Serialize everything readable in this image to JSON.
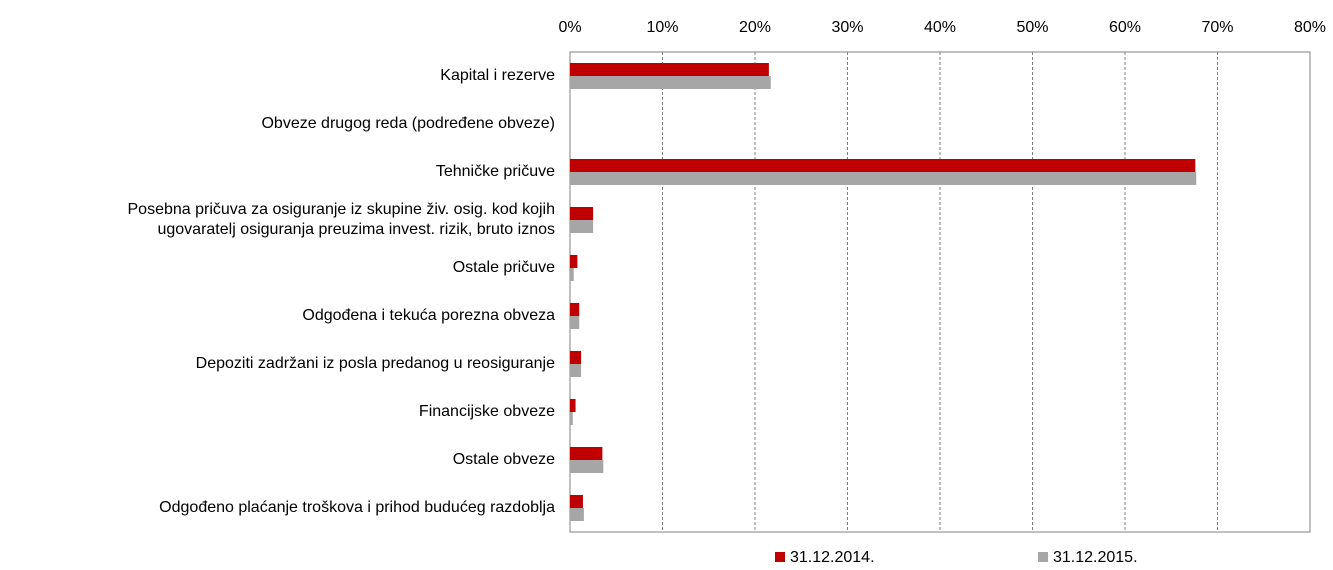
{
  "chart_data": {
    "type": "hbar",
    "categories": [
      "Kapital i rezerve",
      "Obveze drugog reda (podređene obveze)",
      "Tehničke pričuve",
      "Posebna pričuva za osiguranje iz skupine živ. osig. kod kojih\nugovaratelj osiguranja preuzima invest. rizik, bruto iznos",
      "Ostale pričuve",
      "Odgođena i tekuća porezna obveza",
      "Depoziti zadržani iz posla predanog u reosiguranje",
      "Financijske obveze",
      "Ostale obveze",
      "Odgođeno plaćanje troškova i prihod budućeg razdoblja"
    ],
    "series": [
      {
        "name": "31.12.2014.",
        "color": "#c00000",
        "values": [
          21.5,
          0,
          67.6,
          2.5,
          0.8,
          1.0,
          1.2,
          0.6,
          3.5,
          1.4
        ]
      },
      {
        "name": "31.12.2015.",
        "color": "#a6a6a6",
        "values": [
          21.7,
          0,
          67.7,
          2.5,
          0.4,
          1.0,
          1.2,
          0.3,
          3.6,
          1.5
        ]
      }
    ],
    "xlim": [
      0,
      80
    ],
    "xticks": [
      {
        "value": 0,
        "label": "0%"
      },
      {
        "value": 10,
        "label": "10%"
      },
      {
        "value": 20,
        "label": "20%"
      },
      {
        "value": 30,
        "label": "30%"
      },
      {
        "value": 40,
        "label": "40%"
      },
      {
        "value": 50,
        "label": "50%"
      },
      {
        "value": 60,
        "label": "60%"
      },
      {
        "value": 70,
        "label": "70%"
      },
      {
        "value": 80,
        "label": "80%"
      }
    ],
    "grid": true,
    "legend": "bottom"
  }
}
